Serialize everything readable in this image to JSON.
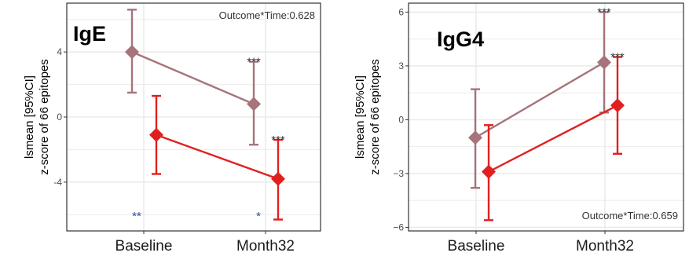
{
  "colors": {
    "series_a": "#a6747a",
    "series_b": "#e0201f",
    "sig_blue": "#2f4b9e",
    "grid": "#ebebeb",
    "panel_border": "#333333"
  },
  "chart_data": [
    {
      "type": "line",
      "title": "IgE",
      "ylabel_line1": "lsmean [95%CI]",
      "ylabel_line2": "z-score of 66 epitopes",
      "annotation": "Outcome*Time:0.628",
      "categories": [
        "Baseline",
        "Month32"
      ],
      "ylim": [
        -7,
        7
      ],
      "yticks": [
        -4,
        0,
        4
      ],
      "ytick_labels": [
        "-4",
        "0",
        "4"
      ],
      "grid": true,
      "series": [
        {
          "values": [
            4.0,
            0.8
          ],
          "lower": [
            1.5,
            -1.7
          ],
          "upper": [
            6.6,
            3.4
          ],
          "sig_labels": [
            "",
            "***"
          ]
        },
        {
          "values": [
            -1.1,
            -3.8
          ],
          "lower": [
            -3.5,
            -6.3
          ],
          "upper": [
            1.3,
            -1.4
          ],
          "sig_labels": [
            "",
            "***"
          ]
        }
      ],
      "between_sig": [
        "**",
        "*"
      ]
    },
    {
      "type": "line",
      "title": "IgG4",
      "ylabel_line1": "lsmean [95%CI]",
      "ylabel_line2": "z-score of 66 epitopes",
      "annotation": "Outcome*Time:0.659",
      "categories": [
        "Baseline",
        "Month32"
      ],
      "ylim": [
        -6.2,
        6.5
      ],
      "yticks": [
        -6,
        -3,
        0,
        3,
        6
      ],
      "ytick_labels": [
        "−6",
        "−3",
        "0",
        "3",
        "6"
      ],
      "grid": true,
      "series": [
        {
          "values": [
            -1.0,
            3.2
          ],
          "lower": [
            -3.8,
            0.4
          ],
          "upper": [
            1.7,
            6.0
          ],
          "sig_labels": [
            "",
            "***"
          ]
        },
        {
          "values": [
            -2.9,
            0.8
          ],
          "lower": [
            -5.6,
            -1.9
          ],
          "upper": [
            -0.3,
            3.5
          ],
          "sig_labels": [
            "",
            "***"
          ]
        }
      ],
      "between_sig": [
        "",
        ""
      ]
    }
  ]
}
